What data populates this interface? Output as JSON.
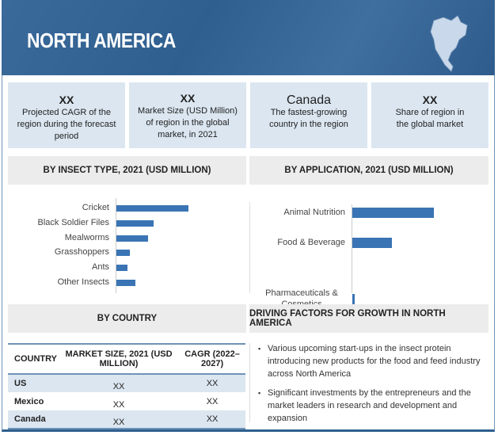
{
  "header": {
    "title": "NORTH AMERICA"
  },
  "stats": [
    {
      "value": "XX",
      "label": "Projected CAGR of the region during the forecast period"
    },
    {
      "value": "XX",
      "label": "Market Size (USD Million) of region in the global market, in 2021"
    },
    {
      "value": "Canada",
      "label": "The fastest-growing country in the region"
    },
    {
      "value": "XX",
      "label": "Share of region in the global market"
    }
  ],
  "chart_data": [
    {
      "type": "bar",
      "orientation": "horizontal",
      "title": "BY INSECT TYPE, 2021 (USD MILLION)",
      "categories": [
        "Cricket",
        "Black Soldier Files",
        "Mealworms",
        "Grasshoppers",
        "Ants",
        "Other Insects"
      ],
      "values": [
        91,
        47,
        40,
        17,
        14,
        24
      ],
      "xlabel": "",
      "ylabel": "",
      "grid": false
    },
    {
      "type": "bar",
      "orientation": "horizontal",
      "title": "BY APPLICATION, 2021 (USD MILLION)",
      "categories": [
        "Animal Nutrition",
        "Food & Beverage",
        "Pharmaceuticals & Cosmetics"
      ],
      "values": [
        103,
        50,
        3
      ],
      "xlabel": "",
      "ylabel": "",
      "grid": false
    }
  ],
  "country": {
    "title": "BY COUNTRY",
    "headers": [
      "COUNTRY",
      "MARKET SIZE, 2021 (USD MILLION)",
      "CAGR (2022–2027)"
    ],
    "rows": [
      [
        "US",
        "XX",
        "XX"
      ],
      [
        "Mexico",
        "XX",
        "XX"
      ],
      [
        "Canada",
        "XX",
        "XX"
      ]
    ]
  },
  "drivers": {
    "title": "DRIVING FACTORS FOR GROWTH IN NORTH AMERICA",
    "items": [
      "Various upcoming start-ups in the insect protein introducing new products for the food and feed industry across North America",
      "Significant investments by the entrepreneurs and the market leaders in research and development and expansion"
    ]
  },
  "colors": {
    "bar": "#3a74b4",
    "header": "#2f5f8f",
    "box": "#dbe6f0"
  }
}
